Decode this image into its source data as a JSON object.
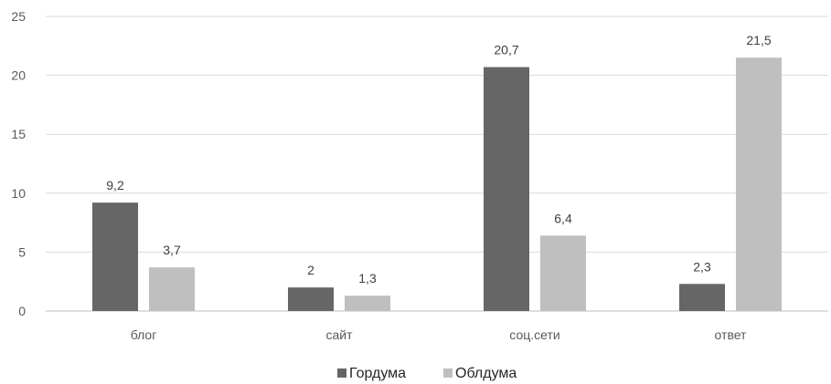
{
  "chart_data": {
    "type": "bar",
    "categories": [
      "блог",
      "сайт",
      "соц.сети",
      "ответ"
    ],
    "series": [
      {
        "name": "Гордума",
        "values": [
          9.2,
          2,
          20.7,
          2.3
        ],
        "labels": [
          "9,2",
          "2",
          "20,7",
          "2,3"
        ],
        "color": "#666666"
      },
      {
        "name": "Облдума",
        "values": [
          3.7,
          1.3,
          6.4,
          21.5
        ],
        "labels": [
          "3,7",
          "1,3",
          "6,4",
          "21,5"
        ],
        "color": "#bfbfbf"
      }
    ],
    "y_ticks": [
      "0",
      "5",
      "10",
      "15",
      "20",
      "25"
    ],
    "ylim": [
      0,
      25
    ],
    "grid": true,
    "legend": "bottom-center"
  }
}
